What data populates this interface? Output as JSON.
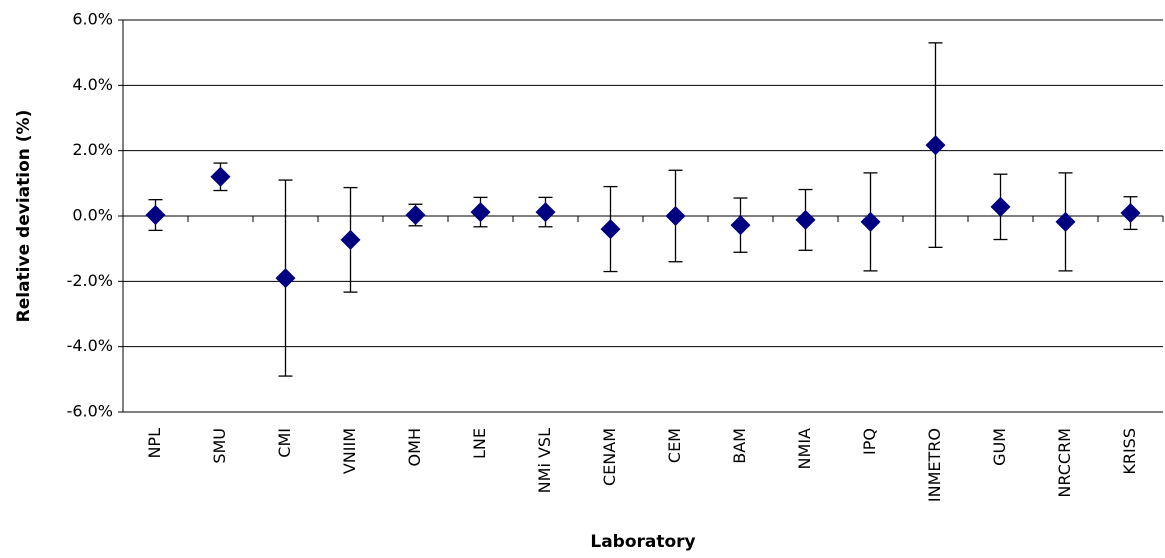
{
  "chart_data": {
    "type": "scatter",
    "x_label": "Laboratory",
    "y_label": "Relative deviation (%)",
    "categories": [
      "NPL",
      "SMU",
      "CMI",
      "VNIIM",
      "OMH",
      "LNE",
      "NMi VSL",
      "CENAM",
      "CEM",
      "BAM",
      "NMIA",
      "IPQ",
      "INMETRO",
      "GUM",
      "NRCCRM",
      "KRISS"
    ],
    "values": [
      0.03,
      1.2,
      -1.9,
      -0.73,
      0.03,
      0.12,
      0.12,
      -0.4,
      0,
      -0.28,
      -0.12,
      -0.18,
      2.17,
      0.28,
      -0.18,
      0.09
    ],
    "errors": [
      0.47,
      0.42,
      3.0,
      1.6,
      0.33,
      0.45,
      0.45,
      1.3,
      1.4,
      0.83,
      0.93,
      1.5,
      3.13,
      1.0,
      1.5,
      0.5
    ],
    "color": "#000080",
    "ylim": [
      -6,
      6
    ],
    "yticks": [
      {
        "value": -6,
        "label": "-6.0%"
      },
      {
        "value": -4,
        "label": "-4.0%"
      },
      {
        "value": -2,
        "label": "-2.0%"
      },
      {
        "value": 0,
        "label": "0.0%"
      },
      {
        "value": 2,
        "label": "2.0%"
      },
      {
        "value": 4,
        "label": "4.0%"
      },
      {
        "value": 6,
        "label": "6.0%"
      }
    ],
    "grid": true
  }
}
